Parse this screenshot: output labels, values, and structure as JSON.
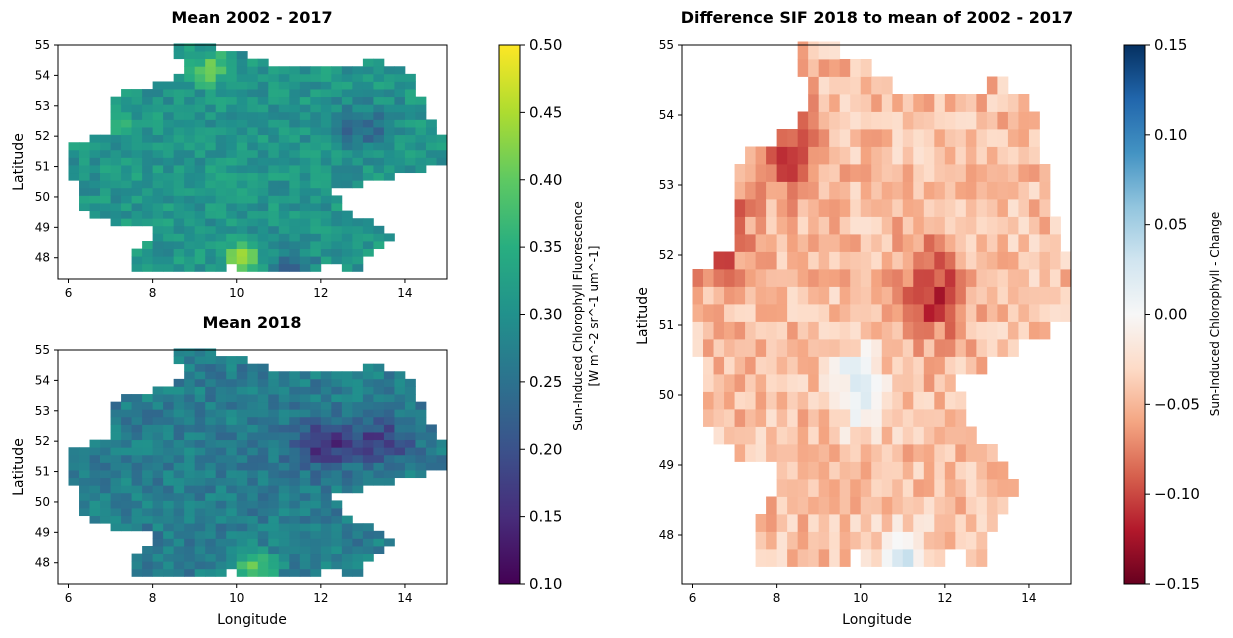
{
  "chart_data": [
    {
      "type": "heatmap",
      "title": "Mean 2002 - 2017",
      "xlabel": "",
      "ylabel": "Latitude",
      "xlim": [
        5.75,
        15.0
      ],
      "ylim": [
        47.3,
        55.0
      ],
      "xticks": [
        "6",
        "8",
        "10",
        "12",
        "14"
      ],
      "yticks": [
        "48",
        "49",
        "50",
        "51",
        "52",
        "53",
        "54",
        "55"
      ],
      "colormap": "viridis",
      "value_range": [
        0.1,
        0.5
      ],
      "grid_resolution_deg": 0.25,
      "typical_value": 0.31,
      "hotspots": [
        {
          "lon": 10.2,
          "lat": 47.9,
          "value": 0.47
        },
        {
          "lon": 9.4,
          "lat": 54.2,
          "value": 0.4
        },
        {
          "lon": 6.8,
          "lat": 52.5,
          "value": 0.39
        }
      ],
      "lowspots": [
        {
          "lon": 13.0,
          "lat": 52.3,
          "value": 0.24
        },
        {
          "lon": 11.0,
          "lat": 47.5,
          "value": 0.22
        }
      ]
    },
    {
      "type": "heatmap",
      "title": "Mean 2018",
      "xlabel": "Longitude",
      "ylabel": "Latitude",
      "xlim": [
        5.75,
        15.0
      ],
      "ylim": [
        47.3,
        55.0
      ],
      "xticks": [
        "6",
        "8",
        "10",
        "12",
        "14"
      ],
      "yticks": [
        "48",
        "49",
        "50",
        "51",
        "52",
        "53",
        "54",
        "55"
      ],
      "colormap": "viridis",
      "value_range": [
        0.1,
        0.5
      ],
      "grid_resolution_deg": 0.25,
      "typical_value": 0.27,
      "hotspots": [
        {
          "lon": 10.4,
          "lat": 47.9,
          "value": 0.42
        }
      ],
      "lowspots": [
        {
          "lon": 12.0,
          "lat": 51.9,
          "value": 0.16
        },
        {
          "lon": 13.4,
          "lat": 52.0,
          "value": 0.18
        }
      ]
    },
    {
      "type": "heatmap",
      "title": "Difference SIF 2018 to mean of 2002 - 2017",
      "xlabel": "Longitude",
      "ylabel": "Latitude",
      "xlim": [
        5.75,
        15.0
      ],
      "ylim": [
        47.3,
        55.0
      ],
      "xticks": [
        "6",
        "8",
        "10",
        "12",
        "14"
      ],
      "yticks": [
        "48",
        "49",
        "50",
        "51",
        "52",
        "53",
        "54",
        "55"
      ],
      "colormap": "RdBu",
      "value_range": [
        -0.15,
        0.15
      ],
      "grid_resolution_deg": 0.25,
      "typical_value": -0.045,
      "hotspots": [
        {
          "lon": 11.7,
          "lat": 51.5,
          "value": -0.11
        },
        {
          "lon": 8.3,
          "lat": 53.5,
          "value": -0.1
        },
        {
          "lon": 6.6,
          "lat": 52.4,
          "value": -0.12
        }
      ],
      "lowspots": [
        {
          "lon": 11.0,
          "lat": 47.5,
          "value": 0.03
        },
        {
          "lon": 9.9,
          "lat": 50.1,
          "value": 0.02
        }
      ]
    }
  ],
  "colorbars": {
    "left": {
      "label_line1": "Sun-Induced Chlorophyll Fluorescence",
      "label_line2": "[W m^-2 sr^-1 um^-1]",
      "ticks": [
        "0.10",
        "0.15",
        "0.20",
        "0.25",
        "0.30",
        "0.35",
        "0.40",
        "0.45",
        "0.50"
      ]
    },
    "right": {
      "label": "Sun-Induced Chlorophyll - Change",
      "ticks": [
        "−0.15",
        "−0.10",
        "−0.05",
        "0.00",
        "0.05",
        "0.10",
        "0.15"
      ]
    }
  }
}
